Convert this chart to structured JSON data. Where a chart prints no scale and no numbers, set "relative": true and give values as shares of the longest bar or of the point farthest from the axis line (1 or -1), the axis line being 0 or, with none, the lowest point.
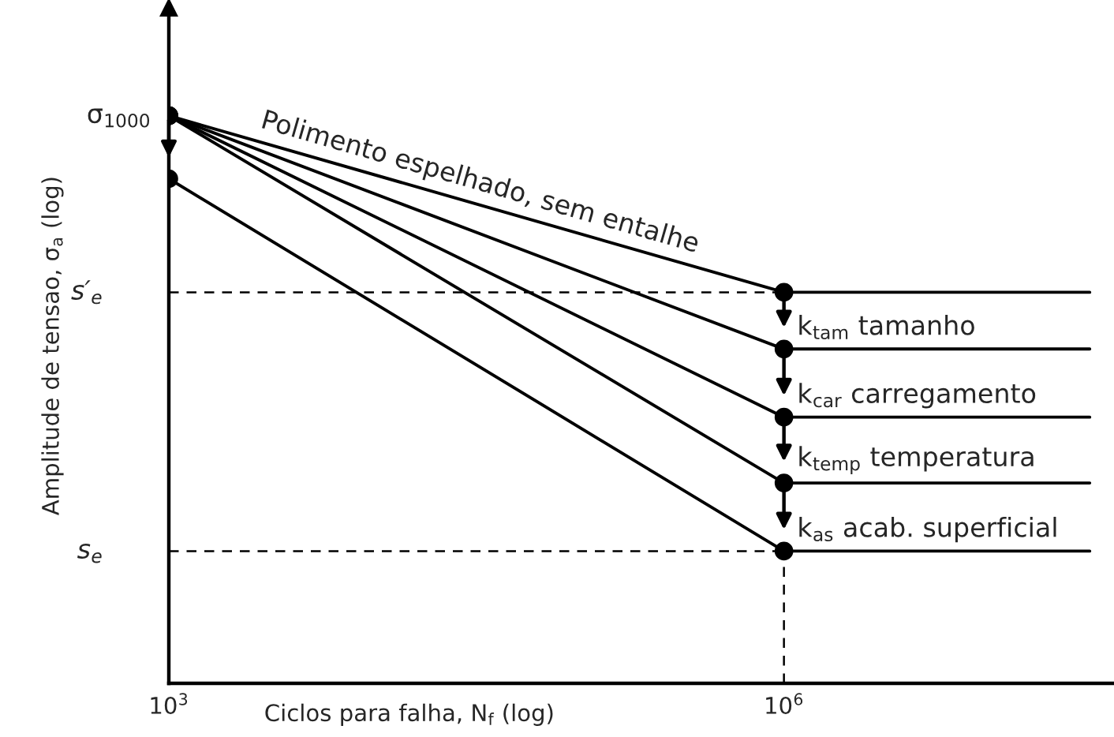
{
  "chart_data": {
    "type": "line",
    "relative": true,
    "log": "x",
    "xlabel": "Ciclos para falha, N$_{f}$ (log)",
    "ylabel": "Amplitude de tensao, σ$_{a}$ (log)",
    "xlim": [
      1000,
      40000000
    ],
    "xticks": [
      {
        "value": 1000,
        "label": "10$^{3}$"
      },
      {
        "value": 1000000,
        "label": "10$^{6}$"
      }
    ],
    "grid": false,
    "legend": false,
    "marker": "circle",
    "line_style": "solid",
    "series": [
      {
        "color": "#000000",
        "x": [
          1000,
          1000000,
          31000000
        ],
        "values": [
          1,
          0.689,
          0.689
        ]
      },
      {
        "color": "#000000",
        "x": [
          1000,
          1000000,
          31000000
        ],
        "values": [
          1,
          0.589,
          0.589
        ]
      },
      {
        "color": "#000000",
        "x": [
          1000,
          1000000,
          31000000
        ],
        "values": [
          1,
          0.469,
          0.469
        ]
      },
      {
        "color": "#000000",
        "x": [
          1000,
          1000000,
          31000000
        ],
        "values": [
          1,
          0.353,
          0.353
        ]
      },
      {
        "color": "#000000",
        "x": [
          1000,
          1000000,
          31000000
        ],
        "values": [
          0.889,
          0.233,
          0.233
        ]
      }
    ],
    "ref_lines": [
      {
        "axis": "y",
        "value": 0.689,
        "label": "s′$_{e}$",
        "color": "#000000",
        "line_style": "dashed"
      },
      {
        "axis": "y",
        "value": 0.233,
        "label": "s$_{e}$",
        "color": "#000000",
        "line_style": "dashed"
      },
      {
        "axis": "x",
        "value": 1000000,
        "color": "#000000",
        "line_style": "dashed"
      }
    ],
    "annotations": [
      {
        "text": "σ$_{1000}$",
        "x": 1000,
        "y": 1
      },
      {
        "text": "Polimento espelhado, sem entalhe",
        "x": 31622,
        "y": 0.8445
      },
      {
        "text": "k$_{tam}$ tamanho",
        "x": 1000000,
        "y": 0.589
      },
      {
        "text": "k$_{car}$ carregamento",
        "x": 1000000,
        "y": 0.469
      },
      {
        "text": "k$_{temp}$ temperatura",
        "x": 1000000,
        "y": 0.353
      },
      {
        "text": "k$_{as}$ acab. superficial",
        "x": 1000000,
        "y": 0.233
      }
    ]
  }
}
